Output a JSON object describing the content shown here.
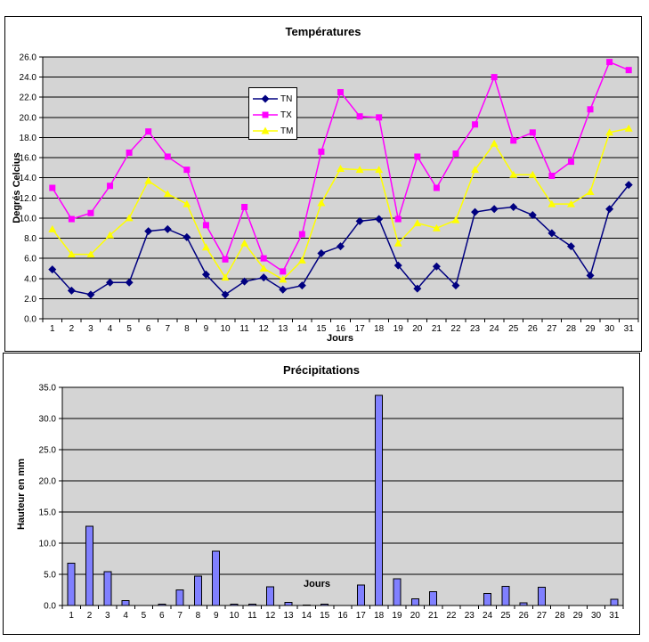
{
  "page_background": "#FFFFFF",
  "chart_data": [
    {
      "type": "line",
      "title": "Températures",
      "y_axis_title": "Degrés Celcius",
      "x_axis_title": "Jours",
      "y_min": 0.0,
      "y_max": 26.0,
      "y_step": 2.0,
      "grid": true,
      "plot_bg": "#D4D4D4",
      "legend_position": "inner-top-center",
      "categories": [
        "1",
        "2",
        "3",
        "4",
        "5",
        "6",
        "7",
        "8",
        "9",
        "10",
        "11",
        "12",
        "13",
        "14",
        "15",
        "16",
        "17",
        "18",
        "19",
        "20",
        "21",
        "22",
        "23",
        "24",
        "25",
        "26",
        "27",
        "28",
        "29",
        "30",
        "31"
      ],
      "series": [
        {
          "name": "TN",
          "color": "#000080",
          "marker": "diamond",
          "values": [
            4.9,
            2.8,
            2.4,
            3.6,
            3.6,
            8.7,
            8.9,
            8.1,
            4.4,
            2.4,
            3.7,
            4.1,
            2.9,
            3.3,
            6.5,
            7.2,
            9.7,
            9.9,
            5.3,
            3.0,
            5.2,
            3.3,
            10.6,
            10.9,
            11.1,
            10.3,
            8.5,
            7.2,
            4.3,
            10.9,
            13.3
          ]
        },
        {
          "name": "TX",
          "color": "#FF00FF",
          "marker": "square",
          "values": [
            13.0,
            9.9,
            10.5,
            13.2,
            16.5,
            18.6,
            16.1,
            14.8,
            9.3,
            5.9,
            11.1,
            6.0,
            4.7,
            8.4,
            16.6,
            22.5,
            20.1,
            20.0,
            9.9,
            16.1,
            13.0,
            16.4,
            19.3,
            24.0,
            17.7,
            18.5,
            14.2,
            15.6,
            20.8,
            25.5,
            24.7
          ]
        },
        {
          "name": "TM",
          "color": "#FFFF00",
          "marker": "triangle",
          "values": [
            8.9,
            6.4,
            6.4,
            8.3,
            10.0,
            13.7,
            12.4,
            11.4,
            7.1,
            4.1,
            7.5,
            5.0,
            3.9,
            5.8,
            11.5,
            14.9,
            14.8,
            14.8,
            7.5,
            9.5,
            9.0,
            9.8,
            14.8,
            17.4,
            14.3,
            14.3,
            11.4,
            11.4,
            12.6,
            18.5,
            18.9
          ]
        }
      ]
    },
    {
      "type": "bar",
      "title": "Précipitations",
      "y_axis_title": "Hauteur en mm",
      "x_axis_title": "Jours",
      "y_min": 0.0,
      "y_max": 35.0,
      "y_step": 5.0,
      "grid": true,
      "plot_bg": "#D4D4D4",
      "bar_color": "#8080FF",
      "bar_border": "#000000",
      "categories": [
        "1",
        "2",
        "3",
        "4",
        "5",
        "6",
        "7",
        "8",
        "9",
        "10",
        "11",
        "12",
        "13",
        "14",
        "15",
        "16",
        "17",
        "18",
        "19",
        "20",
        "21",
        "22",
        "23",
        "24",
        "25",
        "26",
        "27",
        "28",
        "29",
        "30",
        "31"
      ],
      "values": [
        6.8,
        12.7,
        5.4,
        0.8,
        0,
        0.2,
        2.5,
        4.7,
        8.7,
        0.2,
        0.2,
        3.0,
        0.5,
        0.1,
        0.2,
        0,
        3.3,
        33.7,
        4.3,
        1.1,
        2.2,
        0,
        0,
        1.9,
        3.1,
        0.4,
        2.9,
        0,
        0,
        0,
        1.0
      ]
    }
  ]
}
